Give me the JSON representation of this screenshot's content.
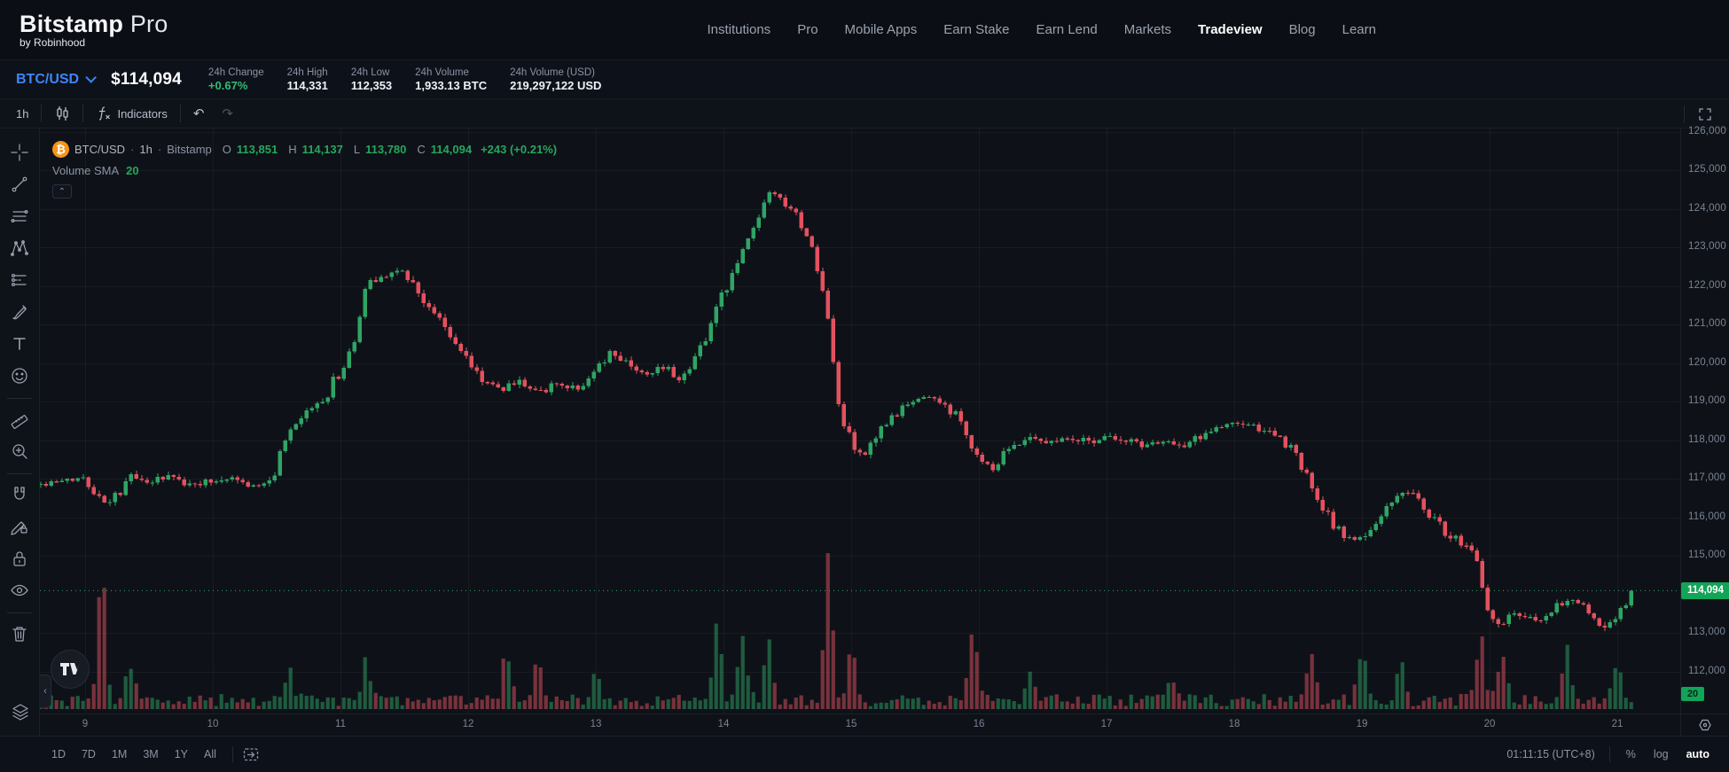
{
  "header": {
    "logo": "Bitstamp",
    "logo_suffix": "Pro",
    "logo_sub": "by Robinhood",
    "nav": [
      {
        "label": "Institutions",
        "active": false
      },
      {
        "label": "Pro",
        "active": false
      },
      {
        "label": "Mobile Apps",
        "active": false
      },
      {
        "label": "Earn Stake",
        "active": false
      },
      {
        "label": "Earn Lend",
        "active": false
      },
      {
        "label": "Markets",
        "active": false
      },
      {
        "label": "Tradeview",
        "active": true
      },
      {
        "label": "Blog",
        "active": false
      },
      {
        "label": "Learn",
        "active": false
      }
    ]
  },
  "ticker": {
    "pair": "BTC/USD",
    "price": "$114,094",
    "stats": [
      {
        "label": "24h Change",
        "value": "+0.67%",
        "positive": true
      },
      {
        "label": "24h High",
        "value": "114,331",
        "positive": false
      },
      {
        "label": "24h Low",
        "value": "112,353",
        "positive": false
      },
      {
        "label": "24h Volume",
        "value": "1,933.13 BTC",
        "positive": false
      },
      {
        "label": "24h Volume (USD)",
        "value": "219,297,122 USD",
        "positive": false
      }
    ]
  },
  "toolbar": {
    "interval": "1h",
    "indicators_label": "Indicators",
    "undo_glyph": "↶",
    "redo_glyph": "↷"
  },
  "sidebar": {
    "groups": [
      [
        "crosshair",
        "trend-line",
        "parallel-lines",
        "xabcd-pattern",
        "forecast",
        "brush",
        "text",
        "emoji"
      ],
      [
        "ruler",
        "zoom-in"
      ],
      [
        "magnet",
        "drawing-lock",
        "lock-all",
        "hide-all"
      ],
      [
        "trash"
      ]
    ],
    "bottom": [
      "layers"
    ]
  },
  "legend": {
    "symbol": "BTC/USD",
    "interval": "1h",
    "exchange": "Bitstamp",
    "sep": "·",
    "o_key": "O",
    "o_val": "113,851",
    "h_key": "H",
    "h_val": "114,137",
    "l_key": "L",
    "l_val": "113,780",
    "c_key": "C",
    "c_val": "114,094",
    "change": "+243 (+0.21%)",
    "volume_label": "Volume SMA",
    "volume_param": "20",
    "collapse_glyph": "⌃"
  },
  "price_scale": {
    "ticks": [
      {
        "label": "126,000",
        "value": 126000
      },
      {
        "label": "125,000",
        "value": 125000
      },
      {
        "label": "124,000",
        "value": 124000
      },
      {
        "label": "123,000",
        "value": 123000
      },
      {
        "label": "122,000",
        "value": 122000
      },
      {
        "label": "121,000",
        "value": 121000
      },
      {
        "label": "120,000",
        "value": 120000
      },
      {
        "label": "119,000",
        "value": 119000
      },
      {
        "label": "118,000",
        "value": 118000
      },
      {
        "label": "117,000",
        "value": 117000
      },
      {
        "label": "116,000",
        "value": 116000
      },
      {
        "label": "115,000",
        "value": 115000
      },
      {
        "label": "113,000",
        "value": 113000
      },
      {
        "label": "112,000",
        "value": 112000
      }
    ],
    "last_price_label": "114,094",
    "volume_tag": "20"
  },
  "bottom_bar": {
    "ranges": [
      "1D",
      "7D",
      "1M",
      "3M",
      "1Y",
      "All"
    ],
    "time": "01:11:15 (UTC+8)",
    "percent": "%",
    "log": "log",
    "auto": "auto"
  },
  "chart_data": {
    "type": "candlestick",
    "symbol": "BTC/USD",
    "interval": "1h",
    "exchange": "Bitstamp",
    "title": "BTC/USD 1h Bitstamp candlestick with volume",
    "last_price": 114094,
    "ohlc_last": {
      "open": 113851,
      "high": 114137,
      "low": 113780,
      "close": 114094
    },
    "x_labels": [
      "9",
      "10",
      "11",
      "12",
      "13",
      "14",
      "15",
      "16",
      "17",
      "18",
      "19",
      "20",
      "21"
    ],
    "x_day_start": 8.65,
    "x_day_end": 21.135,
    "y_visible_min": 112000,
    "y_visible_max": 126000,
    "close_waypoints": [
      [
        8.65,
        116850
      ],
      [
        8.8,
        116900
      ],
      [
        9.0,
        117050
      ],
      [
        9.1,
        116500
      ],
      [
        9.2,
        116350
      ],
      [
        9.35,
        117050
      ],
      [
        9.5,
        116900
      ],
      [
        9.65,
        117050
      ],
      [
        9.8,
        116850
      ],
      [
        10.0,
        116950
      ],
      [
        10.15,
        117050
      ],
      [
        10.3,
        116800
      ],
      [
        10.45,
        116900
      ],
      [
        10.55,
        117800
      ],
      [
        10.7,
        118600
      ],
      [
        10.85,
        119000
      ],
      [
        11.0,
        119800
      ],
      [
        11.1,
        120400
      ],
      [
        11.2,
        122050
      ],
      [
        11.35,
        122300
      ],
      [
        11.5,
        122400
      ],
      [
        11.6,
        121900
      ],
      [
        11.7,
        121400
      ],
      [
        11.8,
        121000
      ],
      [
        11.95,
        120300
      ],
      [
        12.1,
        119600
      ],
      [
        12.25,
        119300
      ],
      [
        12.4,
        119550
      ],
      [
        12.55,
        119250
      ],
      [
        12.7,
        119450
      ],
      [
        12.85,
        119350
      ],
      [
        13.0,
        119700
      ],
      [
        13.1,
        120250
      ],
      [
        13.25,
        120050
      ],
      [
        13.4,
        119650
      ],
      [
        13.55,
        119950
      ],
      [
        13.65,
        119600
      ],
      [
        13.8,
        120300
      ],
      [
        13.95,
        121400
      ],
      [
        14.1,
        122600
      ],
      [
        14.2,
        123200
      ],
      [
        14.3,
        124000
      ],
      [
        14.38,
        124450
      ],
      [
        14.45,
        124100
      ],
      [
        14.55,
        123850
      ],
      [
        14.65,
        123200
      ],
      [
        14.75,
        122400
      ],
      [
        14.82,
        121000
      ],
      [
        14.9,
        118900
      ],
      [
        15.0,
        117900
      ],
      [
        15.1,
        117500
      ],
      [
        15.25,
        118300
      ],
      [
        15.4,
        118800
      ],
      [
        15.55,
        119150
      ],
      [
        15.7,
        119000
      ],
      [
        15.85,
        118500
      ],
      [
        16.0,
        117500
      ],
      [
        16.1,
        117200
      ],
      [
        16.25,
        117850
      ],
      [
        16.4,
        118100
      ],
      [
        16.55,
        117950
      ],
      [
        16.7,
        118100
      ],
      [
        16.85,
        117950
      ],
      [
        17.0,
        118100
      ],
      [
        17.15,
        118000
      ],
      [
        17.3,
        117850
      ],
      [
        17.45,
        118000
      ],
      [
        17.6,
        117800
      ],
      [
        17.75,
        118150
      ],
      [
        17.9,
        118350
      ],
      [
        18.05,
        118450
      ],
      [
        18.2,
        118250
      ],
      [
        18.35,
        118100
      ],
      [
        18.5,
        117500
      ],
      [
        18.65,
        116400
      ],
      [
        18.8,
        115700
      ],
      [
        18.95,
        115350
      ],
      [
        19.1,
        115800
      ],
      [
        19.25,
        116500
      ],
      [
        19.35,
        116700
      ],
      [
        19.5,
        116200
      ],
      [
        19.65,
        115600
      ],
      [
        19.8,
        115250
      ],
      [
        19.9,
        114900
      ],
      [
        19.98,
        113700
      ],
      [
        20.08,
        113200
      ],
      [
        20.2,
        113500
      ],
      [
        20.35,
        113300
      ],
      [
        20.5,
        113650
      ],
      [
        20.65,
        113850
      ],
      [
        20.78,
        113500
      ],
      [
        20.9,
        113150
      ],
      [
        21.0,
        113500
      ],
      [
        21.08,
        113850
      ],
      [
        21.135,
        114094
      ]
    ],
    "volume_spikes": [
      [
        9.13,
        0.92
      ],
      [
        9.35,
        0.25
      ],
      [
        10.6,
        0.2
      ],
      [
        11.2,
        0.3
      ],
      [
        12.3,
        0.35
      ],
      [
        12.55,
        0.3
      ],
      [
        13.0,
        0.25
      ],
      [
        13.95,
        0.5
      ],
      [
        14.15,
        0.45
      ],
      [
        14.35,
        0.4
      ],
      [
        14.82,
        1.0
      ],
      [
        15.0,
        0.35
      ],
      [
        15.95,
        0.5
      ],
      [
        16.4,
        0.2
      ],
      [
        17.5,
        0.15
      ],
      [
        18.6,
        0.3
      ],
      [
        19.0,
        0.35
      ],
      [
        19.3,
        0.3
      ],
      [
        19.93,
        0.45
      ],
      [
        20.1,
        0.3
      ],
      [
        20.6,
        0.35
      ],
      [
        21.0,
        0.25
      ]
    ],
    "colors": {
      "up": "#2fa465",
      "down": "#e3515f",
      "last_price_line": "#2fa465",
      "tag_bg": "#12a457",
      "grid": "rgba(255,255,255,0.045)"
    }
  }
}
